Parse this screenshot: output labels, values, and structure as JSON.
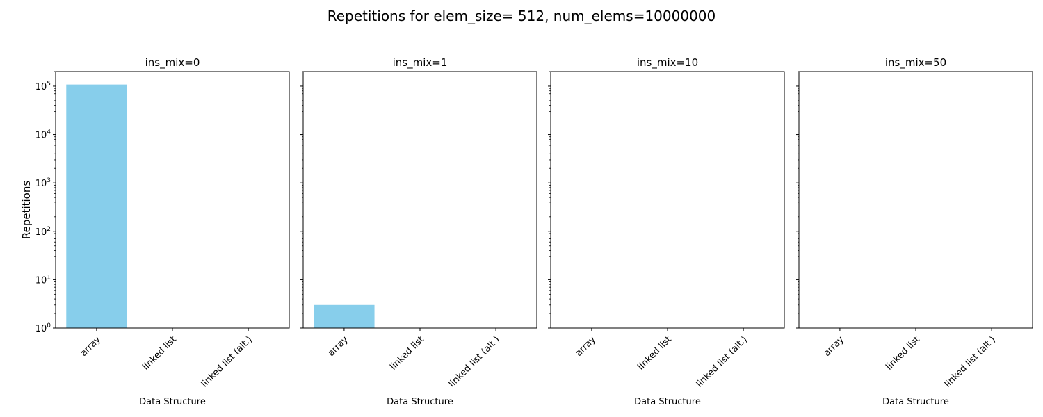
{
  "figure": {
    "title": "Repetitions for elem_size= 512, num_elems=10000000",
    "ylabel": "Repetitions"
  },
  "chart_data": {
    "type": "bar",
    "title": "Repetitions for elem_size= 512, num_elems=10000000",
    "yscale": "log",
    "ylim": [
      1,
      200000
    ],
    "ylabel": "Repetitions",
    "sharey": true,
    "grid": false,
    "legend": "none",
    "bar_color": "#87ceeb",
    "yticks": [
      {
        "base": "10",
        "exp": "0"
      },
      {
        "base": "10",
        "exp": "1"
      },
      {
        "base": "10",
        "exp": "2"
      },
      {
        "base": "10",
        "exp": "3"
      },
      {
        "base": "10",
        "exp": "4"
      },
      {
        "base": "10",
        "exp": "5"
      }
    ],
    "panels": [
      {
        "title": "ins_mix=0",
        "xlabel": "Data Structure",
        "categories": [
          "array",
          "linked list",
          "linked list (alt.)"
        ],
        "values": [
          108000,
          1,
          1
        ]
      },
      {
        "title": "ins_mix=1",
        "xlabel": "Data Structure",
        "categories": [
          "array",
          "linked list",
          "linked list (alt.)"
        ],
        "values": [
          3,
          1,
          1
        ]
      },
      {
        "title": "ins_mix=10",
        "xlabel": "Data Structure",
        "categories": [
          "array",
          "linked list",
          "linked list (alt.)"
        ],
        "values": [
          1,
          1,
          1
        ]
      },
      {
        "title": "ins_mix=50",
        "xlabel": "Data Structure",
        "categories": [
          "array",
          "linked list",
          "linked list (alt.)"
        ],
        "values": [
          1,
          1,
          1
        ]
      }
    ]
  }
}
